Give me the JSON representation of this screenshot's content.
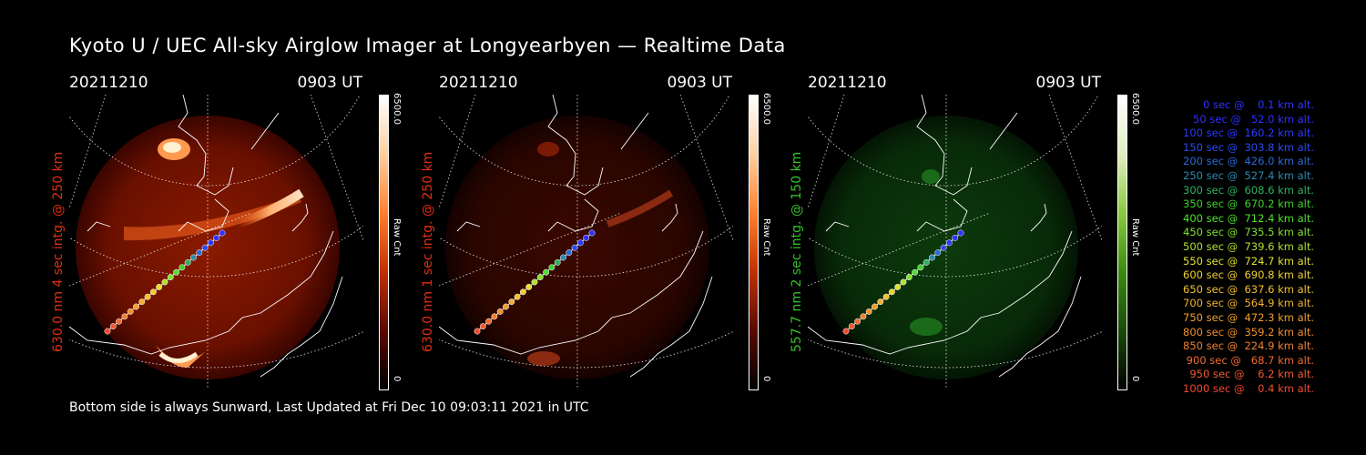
{
  "title": "Kyoto U / UEC All-sky Airglow Imager at Longyearbyen — Realtime Data",
  "footer": "Bottom side is always Sunward, Last Updated at Fri Dec 10 09:03:11 2021 in UTC",
  "panels": [
    {
      "date": "20211210",
      "time": "0903 UT",
      "ylabel": "630.0 nm  4 sec intg. @ 250 km",
      "label_color": "#e03010",
      "cb_max": "6500.0",
      "cb_unit": "Raw Cnt",
      "cb_min": "0",
      "colormap": "red"
    },
    {
      "date": "20211210",
      "time": "0903 UT",
      "ylabel": "630.0 nm  1 sec intg. @ 250 km",
      "label_color": "#e03010",
      "cb_max": "6500.0",
      "cb_unit": "Raw Cnt",
      "cb_min": "0",
      "colormap": "red"
    },
    {
      "date": "20211210",
      "time": "0903 UT",
      "ylabel": "557.7 nm  2 sec intg. @ 150 km",
      "label_color": "#35c02a",
      "cb_max": "6500.0",
      "cb_unit": "Raw Cnt",
      "cb_min": "0",
      "colormap": "green"
    }
  ],
  "legend": [
    {
      "text": "   0 sec @    0.1 km alt.",
      "color": "#3030ff"
    },
    {
      "text": "  50 sec @   52.0 km alt.",
      "color": "#3030ff"
    },
    {
      "text": " 100 sec @  160.2 km alt.",
      "color": "#2a3aff"
    },
    {
      "text": " 150 sec @  303.8 km alt.",
      "color": "#2a4af0"
    },
    {
      "text": " 200 sec @  426.0 km alt.",
      "color": "#2a6ad8"
    },
    {
      "text": " 250 sec @  527.4 km alt.",
      "color": "#2a8ab0"
    },
    {
      "text": " 300 sec @  608.6 km alt.",
      "color": "#30b060"
    },
    {
      "text": " 350 sec @  670.2 km alt.",
      "color": "#40d030"
    },
    {
      "text": " 400 sec @  712.4 km alt.",
      "color": "#50e030"
    },
    {
      "text": " 450 sec @  735.5 km alt.",
      "color": "#80e030"
    },
    {
      "text": " 500 sec @  739.6 km alt.",
      "color": "#b0e030"
    },
    {
      "text": " 550 sec @  724.7 km alt.",
      "color": "#e0e030"
    },
    {
      "text": " 600 sec @  690.8 km alt.",
      "color": "#f0d030"
    },
    {
      "text": " 650 sec @  637.6 km alt.",
      "color": "#f0c030"
    },
    {
      "text": " 700 sec @  564.9 km alt.",
      "color": "#f0b030"
    },
    {
      "text": " 750 sec @  472.3 km alt.",
      "color": "#f0a030"
    },
    {
      "text": " 800 sec @  359.2 km alt.",
      "color": "#f09030"
    },
    {
      "text": " 850 sec @  224.9 km alt.",
      "color": "#f08030"
    },
    {
      "text": " 900 sec @   68.7 km alt.",
      "color": "#f06a30"
    },
    {
      "text": " 950 sec @    6.2 km alt.",
      "color": "#f05a30"
    },
    {
      "text": "1000 sec @    0.4 km alt.",
      "color": "#f04a30"
    }
  ]
}
